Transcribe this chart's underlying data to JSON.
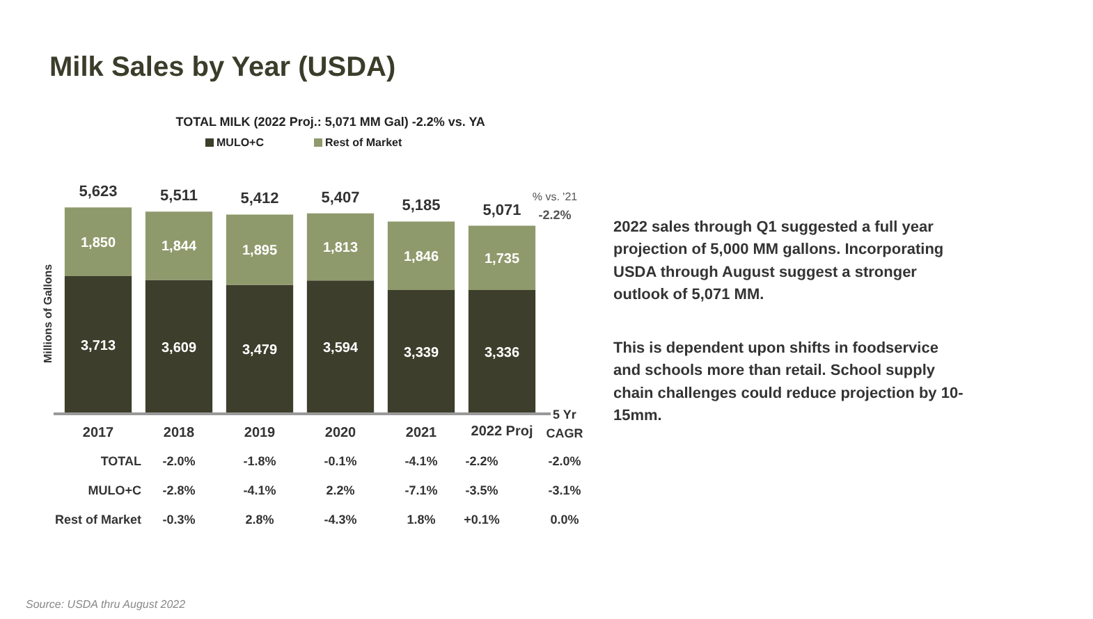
{
  "chart_data": {
    "type": "bar",
    "title": "Milk Sales by Year (USDA)",
    "subtitle": "TOTAL MILK (2022 Proj.: 5,071 MM Gal) -2.2% vs. YA",
    "ylabel": "Millions of Gallons",
    "categories": [
      "2017",
      "2018",
      "2019",
      "2020",
      "2021",
      "2022 Proj"
    ],
    "stacked": true,
    "legend": "top",
    "series": [
      {
        "name": "MULO+C",
        "color": "#3d3e2b",
        "values": [
          3713,
          3609,
          3479,
          3594,
          3339,
          3336
        ],
        "value_labels": [
          "3,713",
          "3,609",
          "3,479",
          "3,594",
          "3,339",
          "3,336"
        ]
      },
      {
        "name": "Rest of Market",
        "color": "#8f9a6c",
        "values": [
          1850,
          1844,
          1895,
          1813,
          1846,
          1735
        ],
        "value_labels": [
          "1,850",
          "1,844",
          "1,895",
          "1,813",
          "1,846",
          "1,735"
        ]
      }
    ],
    "annotations": [
      "% vs. '21",
      "-2.2%",
      "5 Yr\nCAGR",
      "TOTAL",
      "MULO+C",
      "Rest of Market",
      "-2.0%",
      "-1.8%",
      "-0.1%",
      "-4.1%",
      "-2.2%",
      "-2.0%",
      "-2.8%",
      "-4.1%",
      "2.2%",
      "-7.1%",
      "-3.5%",
      "-3.1%",
      "-0.3%",
      "2.8%",
      "-4.3%",
      "1.8%",
      "+0.1%",
      "0.0%",
      "2022 sales through Q1 suggested a full year\nprojection of 5,000 MM gallons. Incorporating\nUSDA through August suggest a stronger\noutlook of 5,071 MM.",
      "This is dependent upon shifts in foodservice\nand schools more than retail.  School supply\nchain challenges could reduce projection by 10-\n15mm.",
      "Source:  USDA thru August 2022",
      {
        "text": "5,623",
        "x": "2017",
        "y": 5563
      },
      {
        "text": "5,511",
        "x": "2018",
        "y": 5453
      },
      {
        "text": "5,412",
        "x": "2019",
        "y": 5374
      },
      {
        "text": "5,407",
        "x": "2020",
        "y": 5407
      },
      {
        "text": "5,185",
        "x": "2021",
        "y": 5185
      },
      {
        "text": "5,071",
        "x": "2022 Proj",
        "y": 5071
      }
    ]
  }
}
